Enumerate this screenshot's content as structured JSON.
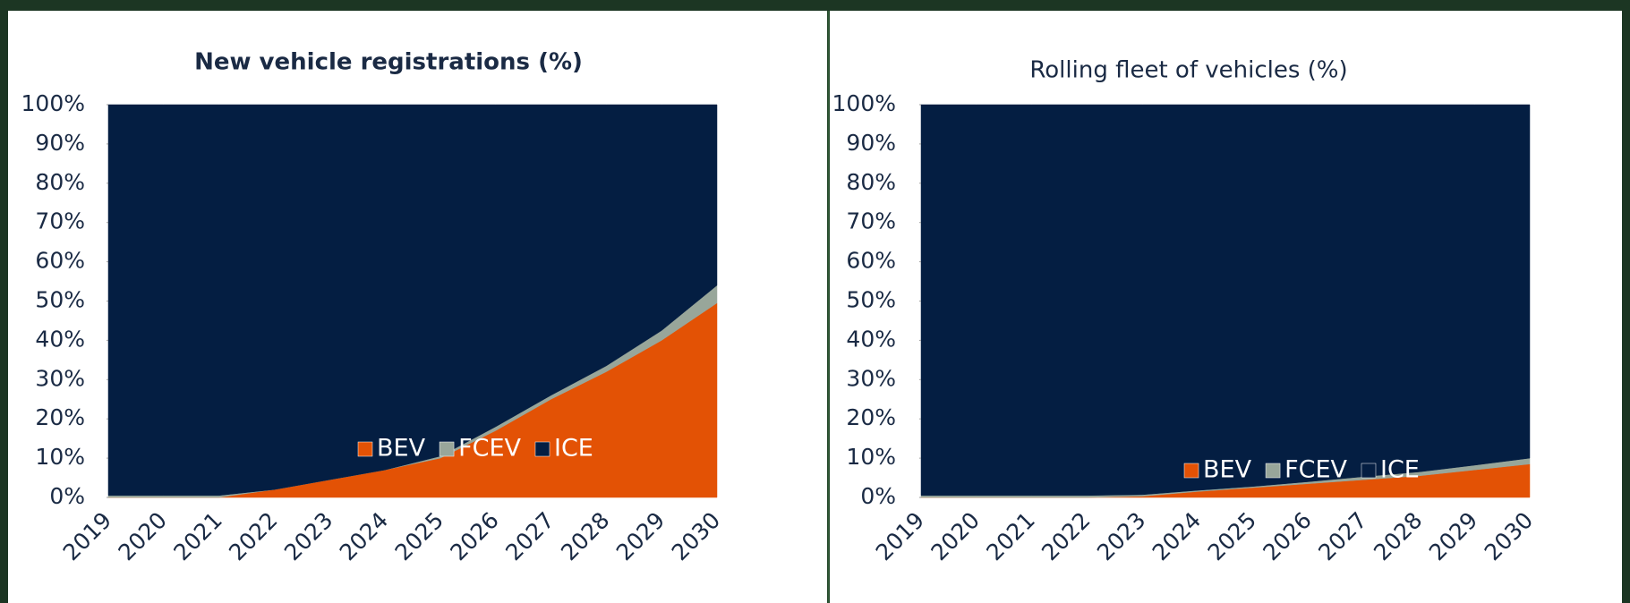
{
  "chart_data": [
    {
      "type": "area",
      "stacked": true,
      "title": "New vehicle registrations (%)",
      "categories": [
        "2019",
        "2020",
        "2021",
        "2022",
        "2023",
        "2024",
        "2025",
        "2026",
        "2027",
        "2028",
        "2029",
        "2030"
      ],
      "series": [
        {
          "name": "BEV",
          "color": "#e35205",
          "values": [
            0,
            0,
            0,
            2,
            4.5,
            7,
            10,
            17,
            25,
            32,
            40,
            49.5
          ]
        },
        {
          "name": "FCEV",
          "color": "#98a69a",
          "values": [
            0.5,
            0.5,
            0.5,
            0,
            0,
            0,
            0.5,
            1,
            1,
            1.5,
            2.5,
            4.5
          ]
        },
        {
          "name": "ICE",
          "color": "#041e42",
          "values": [
            99.5,
            99.5,
            99.5,
            98,
            95.5,
            93,
            89.5,
            82,
            74,
            66.5,
            57.5,
            46
          ]
        }
      ],
      "ylim": [
        0,
        100
      ],
      "yticks": [
        {
          "value": 0,
          "label": "0%"
        },
        {
          "value": 10,
          "label": "10%"
        },
        {
          "value": 20,
          "label": "20%"
        },
        {
          "value": 30,
          "label": "30%"
        },
        {
          "value": 40,
          "label": "40%"
        },
        {
          "value": 50,
          "label": "50%"
        },
        {
          "value": 60,
          "label": "60%"
        },
        {
          "value": 70,
          "label": "70%"
        },
        {
          "value": 80,
          "label": "80%"
        },
        {
          "value": 90,
          "label": "90%"
        },
        {
          "value": 100,
          "label": "100%"
        }
      ],
      "legend": "inside-bottom"
    },
    {
      "type": "area",
      "stacked": true,
      "title": "Rolling fleet of vehicles (%)",
      "categories": [
        "2019",
        "2020",
        "2021",
        "2022",
        "2023",
        "2024",
        "2025",
        "2026",
        "2027",
        "2028",
        "2029",
        "2030"
      ],
      "series": [
        {
          "name": "BEV",
          "color": "#e35205",
          "values": [
            0,
            0,
            0,
            0,
            0.3,
            1.5,
            2.5,
            3.5,
            4.5,
            5.5,
            7,
            8.5
          ]
        },
        {
          "name": "FCEV",
          "color": "#98a69a",
          "values": [
            0.5,
            0.5,
            0.5,
            0.5,
            0.4,
            0.3,
            0.3,
            0.5,
            0.8,
            1,
            1.2,
            1.5
          ]
        },
        {
          "name": "ICE",
          "color": "#041e42",
          "values": [
            99.5,
            99.5,
            99.5,
            99.5,
            99.3,
            98.2,
            97.2,
            96,
            94.7,
            93.5,
            91.8,
            90
          ]
        }
      ],
      "ylim": [
        0,
        100
      ],
      "yticks": [
        {
          "value": 0,
          "label": "0%"
        },
        {
          "value": 10,
          "label": "10%"
        },
        {
          "value": 20,
          "label": "20%"
        },
        {
          "value": 30,
          "label": "30%"
        },
        {
          "value": 40,
          "label": "40%"
        },
        {
          "value": 50,
          "label": "50%"
        },
        {
          "value": 60,
          "label": "60%"
        },
        {
          "value": 70,
          "label": "70%"
        },
        {
          "value": 80,
          "label": "80%"
        },
        {
          "value": 90,
          "label": "90%"
        },
        {
          "value": 100,
          "label": "100%"
        }
      ],
      "legend": "inside-bottom"
    }
  ]
}
